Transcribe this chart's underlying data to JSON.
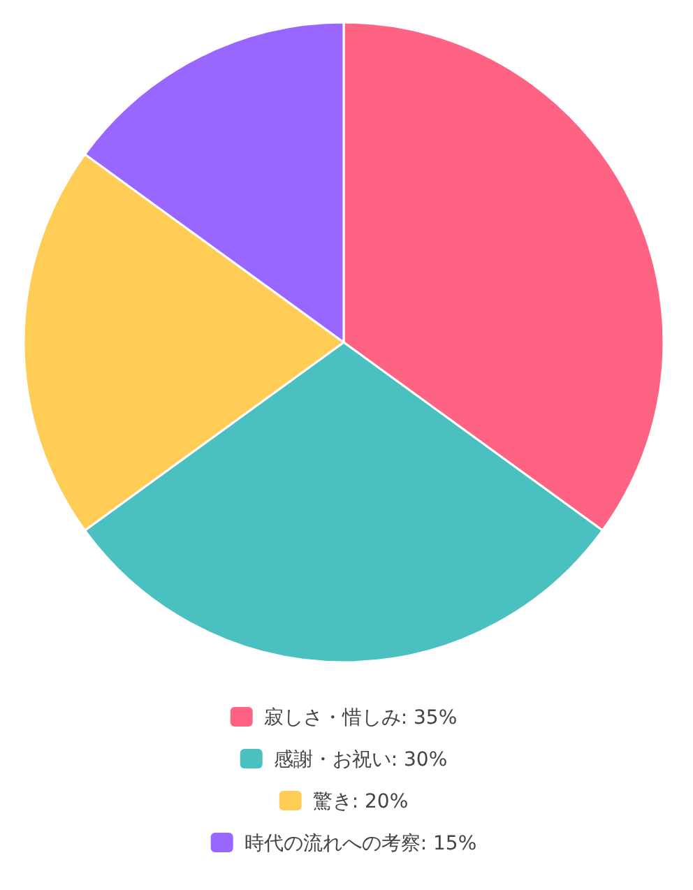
{
  "chart_data": {
    "type": "pie",
    "categories": [
      "寂しさ・惜しみ",
      "感謝・お祝い",
      "驚き",
      "時代の流れへの考察"
    ],
    "values": [
      35,
      30,
      20,
      15
    ],
    "value_labels": [
      "35%",
      "30%",
      "20%",
      "15%"
    ],
    "colors": [
      "#ff6384",
      "#4bc0c0",
      "#ffcd56",
      "#9966ff"
    ],
    "legend": "bottom"
  }
}
